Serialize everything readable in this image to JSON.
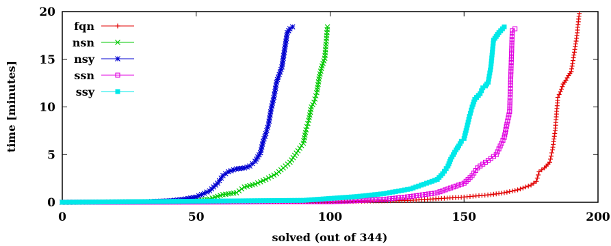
{
  "chart_data": {
    "type": "line",
    "xlabel": "solved (out of 344)",
    "ylabel": "time [minutes]",
    "xlim": [
      0,
      200
    ],
    "ylim": [
      0,
      20
    ],
    "xticks": [
      0,
      50,
      100,
      150,
      200
    ],
    "yticks": [
      0,
      5,
      10,
      15,
      20
    ],
    "legend_position": "top-left",
    "grid": false,
    "series": [
      {
        "name": "fqn",
        "color": "#e00000",
        "marker": "plus",
        "points": [
          [
            0,
            0
          ],
          [
            100,
            0.05
          ],
          [
            130,
            0.2
          ],
          [
            150,
            0.55
          ],
          [
            160,
            0.8
          ],
          [
            165,
            1.0
          ],
          [
            170,
            1.3
          ],
          [
            175,
            1.8
          ],
          [
            177,
            2.2
          ],
          [
            178,
            3.2
          ],
          [
            180,
            3.6
          ],
          [
            182,
            4.2
          ],
          [
            183,
            5.5
          ],
          [
            184,
            7.5
          ],
          [
            185,
            11.0
          ],
          [
            186,
            11.6
          ],
          [
            187,
            12.4
          ],
          [
            188,
            12.8
          ],
          [
            189,
            13.3
          ],
          [
            190,
            13.7
          ],
          [
            192,
            17.2
          ],
          [
            193,
            19.8
          ]
        ]
      },
      {
        "name": "nsn",
        "color": "#00c800",
        "marker": "x",
        "points": [
          [
            0,
            0
          ],
          [
            40,
            0.05
          ],
          [
            50,
            0.15
          ],
          [
            55,
            0.35
          ],
          [
            60,
            0.8
          ],
          [
            65,
            1.0
          ],
          [
            68,
            1.6
          ],
          [
            72,
            1.9
          ],
          [
            76,
            2.4
          ],
          [
            80,
            3.0
          ],
          [
            85,
            4.2
          ],
          [
            88,
            5.4
          ],
          [
            90,
            6.2
          ],
          [
            91,
            7.6
          ],
          [
            92,
            8.6
          ],
          [
            93,
            10.0
          ],
          [
            94,
            10.5
          ],
          [
            95,
            11.5
          ],
          [
            96,
            13.2
          ],
          [
            97,
            14.3
          ],
          [
            98,
            15.1
          ],
          [
            99,
            18.4
          ]
        ]
      },
      {
        "name": "nsy",
        "color": "#0000d0",
        "marker": "star",
        "points": [
          [
            0,
            0
          ],
          [
            30,
            0.05
          ],
          [
            40,
            0.15
          ],
          [
            45,
            0.3
          ],
          [
            50,
            0.55
          ],
          [
            55,
            1.2
          ],
          [
            58,
            2.0
          ],
          [
            60,
            2.8
          ],
          [
            62,
            3.2
          ],
          [
            65,
            3.5
          ],
          [
            68,
            3.6
          ],
          [
            70,
            3.8
          ],
          [
            72,
            4.3
          ],
          [
            74,
            5.2
          ],
          [
            75,
            6.4
          ],
          [
            76,
            7.2
          ],
          [
            77,
            8.2
          ],
          [
            78,
            9.8
          ],
          [
            79,
            11.0
          ],
          [
            80,
            12.6
          ],
          [
            81,
            13.4
          ],
          [
            82,
            14.2
          ],
          [
            83,
            16.0
          ],
          [
            84,
            17.8
          ],
          [
            85,
            18.2
          ],
          [
            86,
            18.4
          ]
        ]
      },
      {
        "name": "ssn",
        "color": "#e000e0",
        "marker": "square",
        "points": [
          [
            0,
            0
          ],
          [
            100,
            0.05
          ],
          [
            120,
            0.3
          ],
          [
            130,
            0.6
          ],
          [
            140,
            1.0
          ],
          [
            145,
            1.5
          ],
          [
            150,
            2.0
          ],
          [
            153,
            2.8
          ],
          [
            155,
            3.6
          ],
          [
            158,
            4.2
          ],
          [
            160,
            4.6
          ],
          [
            162,
            5.0
          ],
          [
            163,
            5.6
          ],
          [
            164,
            6.2
          ],
          [
            165,
            6.8
          ],
          [
            166,
            8.2
          ],
          [
            167,
            9.5
          ],
          [
            168,
            18.0
          ],
          [
            169,
            18.2
          ]
        ]
      },
      {
        "name": "ssy",
        "color": "#00e8e8",
        "marker": "filled-square",
        "points": [
          [
            0,
            0
          ],
          [
            90,
            0.2
          ],
          [
            110,
            0.6
          ],
          [
            120,
            0.9
          ],
          [
            130,
            1.4
          ],
          [
            135,
            1.9
          ],
          [
            140,
            2.4
          ],
          [
            142,
            3.0
          ],
          [
            144,
            3.8
          ],
          [
            145,
            4.5
          ],
          [
            146,
            5.0
          ],
          [
            147,
            5.5
          ],
          [
            148,
            5.9
          ],
          [
            149,
            6.4
          ],
          [
            150,
            6.7
          ],
          [
            151,
            7.8
          ],
          [
            152,
            9.0
          ],
          [
            153,
            10.0
          ],
          [
            154,
            10.8
          ],
          [
            156,
            11.4
          ],
          [
            157,
            12.0
          ],
          [
            158,
            12.2
          ],
          [
            159,
            12.6
          ],
          [
            160,
            14.2
          ],
          [
            161,
            17.0
          ],
          [
            162,
            17.4
          ],
          [
            163,
            17.8
          ],
          [
            165,
            18.4
          ]
        ]
      }
    ]
  }
}
